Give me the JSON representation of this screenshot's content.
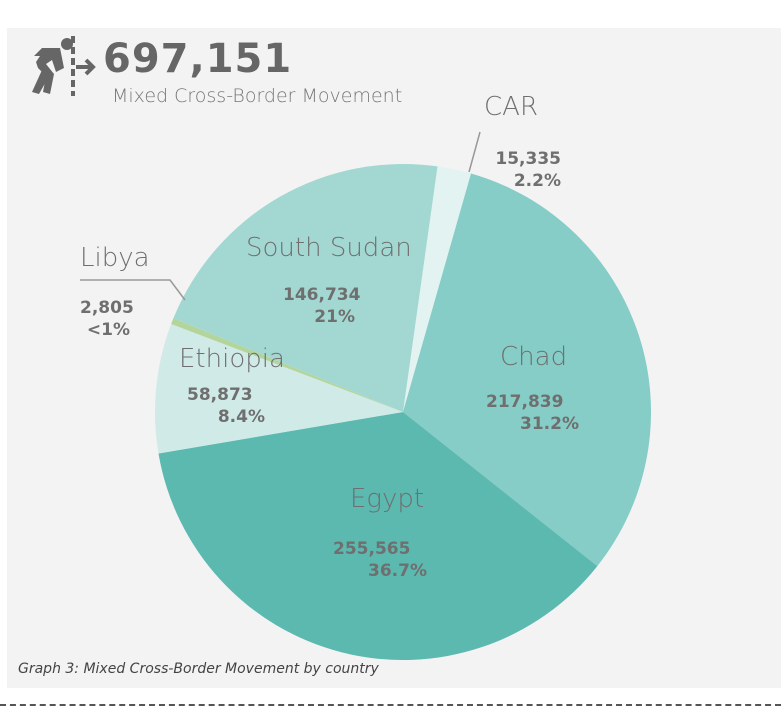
{
  "header": {
    "total": "697,151",
    "subtitle": "Mixed Cross-Border Movement",
    "icon": "person-crossing-border-icon"
  },
  "caption": "Graph 3: Mixed Cross-Border Movement by country",
  "chart_data": {
    "type": "pie",
    "title": "",
    "slices": [
      {
        "name": "CAR",
        "value": 15335,
        "percent_label": "2.2%",
        "value_label": "15,335",
        "color": "#e2f3f1"
      },
      {
        "name": "Chad",
        "value": 217839,
        "percent_label": "31.2%",
        "value_label": "217,839",
        "color": "#85cdc6"
      },
      {
        "name": "Egypt",
        "value": 255565,
        "percent_label": "36.7%",
        "value_label": "255,565",
        "color": "#5bb9b0"
      },
      {
        "name": "Ethiopia",
        "value": 58873,
        "percent_label": "8.4%",
        "value_label": "58,873",
        "color": "#cfeae7"
      },
      {
        "name": "Libya",
        "value": 2805,
        "percent_label": "<1%",
        "value_label": "2,805",
        "color": "#b3d59c"
      },
      {
        "name": "South Sudan",
        "value": 146734,
        "percent_label": "21%",
        "value_label": "146,734",
        "color": "#a3d8d2"
      }
    ]
  }
}
